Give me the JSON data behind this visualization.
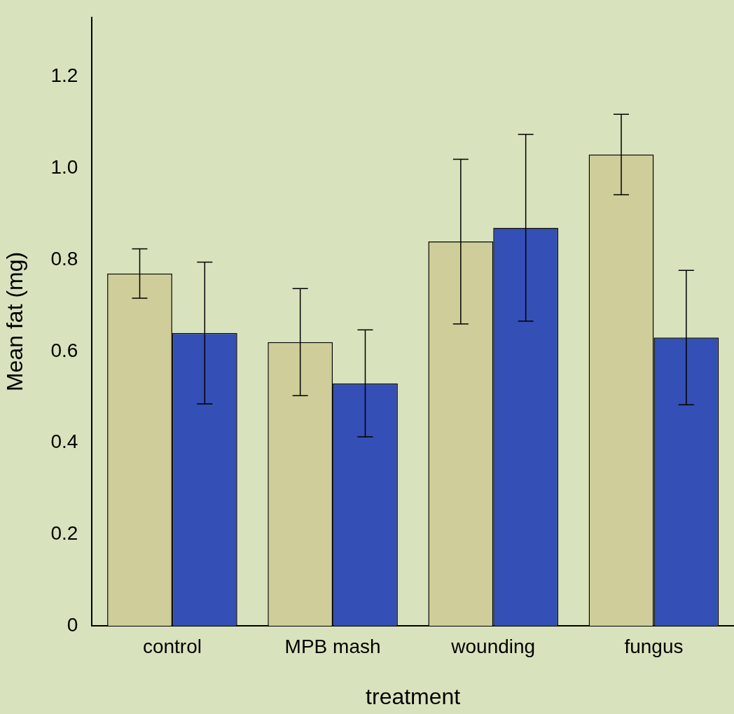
{
  "chart_data": {
    "type": "bar",
    "xlabel": "treatment",
    "ylabel": "Mean fat (mg)",
    "categories": [
      "control",
      "MPB mash",
      "wounding",
      "fungus"
    ],
    "series": [
      {
        "color": "#cfcd9a",
        "values": [
          0.77,
          0.62,
          0.84,
          1.03
        ],
        "errors": [
          0.054,
          0.117,
          0.18,
          0.088
        ]
      },
      {
        "color": "#344fb5",
        "values": [
          0.64,
          0.53,
          0.87,
          0.63
        ],
        "errors": [
          0.155,
          0.117,
          0.204,
          0.147
        ]
      }
    ],
    "ylim": [
      0,
      1.33
    ],
    "yticks": [
      0,
      0.2,
      0.4,
      0.6,
      0.8,
      {
        "value": 1,
        "label": "1.0"
      },
      1.2
    ],
    "grid": false,
    "legend": false
  }
}
